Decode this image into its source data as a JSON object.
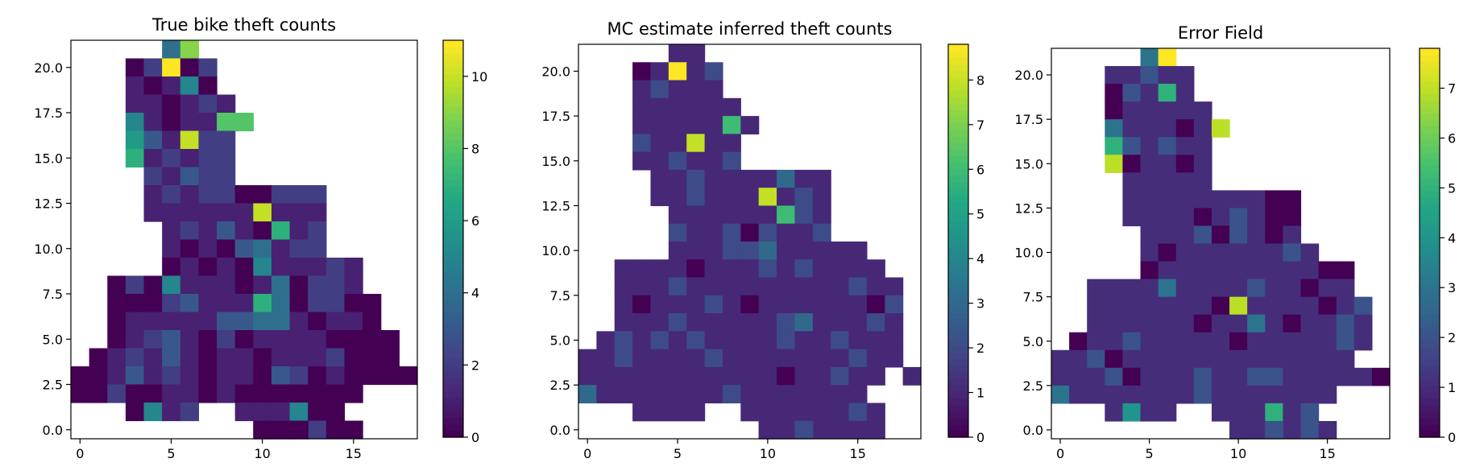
{
  "colormap": "viridis",
  "chart_data": [
    {
      "type": "heatmap",
      "title": "True bike theft counts",
      "xlim": [
        -0.5,
        18.5
      ],
      "ylim": [
        -0.5,
        21.5
      ],
      "xticks": [
        "0",
        "5",
        "10",
        "15"
      ],
      "yticks": [
        "0.0",
        "2.5",
        "5.0",
        "7.5",
        "10.0",
        "12.5",
        "15.0",
        "17.5",
        "20.0"
      ],
      "colorbar": {
        "min": 0,
        "max": 11,
        "ticks": [
          "0",
          "2",
          "4",
          "6",
          "8",
          "10"
        ]
      },
      "cell_rows": [
        {
          "y": 21,
          "x0": 5,
          "values": [
            4,
            9
          ]
        },
        {
          "y": 20,
          "x0": 3,
          "values": [
            0,
            2,
            11,
            0,
            2
          ]
        },
        {
          "y": 19,
          "x0": 3,
          "values": [
            1,
            0,
            1,
            5,
            0
          ]
        },
        {
          "y": 18,
          "x0": 3,
          "values": [
            1,
            1,
            0,
            1,
            2,
            1
          ]
        },
        {
          "y": 17,
          "x0": 3,
          "values": [
            5,
            1,
            0,
            1,
            1,
            8,
            8
          ]
        },
        {
          "y": 16,
          "x0": 3,
          "values": [
            6,
            3,
            1,
            10,
            2,
            2
          ]
        },
        {
          "y": 15,
          "x0": 3,
          "values": [
            7,
            1,
            2,
            1,
            2,
            2
          ]
        },
        {
          "y": 14,
          "x0": 4,
          "values": [
            2,
            1,
            3,
            2,
            2
          ]
        },
        {
          "y": 13,
          "x0": 4,
          "values": [
            1,
            2,
            1,
            2,
            2,
            0,
            0,
            2,
            2,
            2
          ]
        },
        {
          "y": 12,
          "x0": 4,
          "values": [
            1,
            1,
            1,
            1,
            1,
            1,
            10,
            1,
            1,
            1
          ]
        },
        {
          "y": 11,
          "x0": 5,
          "values": [
            1,
            2,
            1,
            3,
            1,
            0,
            7,
            1,
            2
          ]
        },
        {
          "y": 10,
          "x0": 5,
          "values": [
            1,
            0,
            1,
            0,
            3,
            4,
            1,
            2,
            2
          ]
        },
        {
          "y": 9,
          "x0": 5,
          "values": [
            0,
            1,
            0,
            1,
            0,
            5,
            1,
            1,
            1,
            2,
            1
          ]
        },
        {
          "y": 8,
          "x0": 2,
          "values": [
            0,
            2,
            0,
            5,
            1,
            1,
            1,
            0,
            1,
            4,
            0,
            2,
            2,
            1
          ]
        },
        {
          "y": 7,
          "x0": 2,
          "values": [
            0,
            0,
            0,
            2,
            3,
            1,
            1,
            1,
            7,
            4,
            0,
            2,
            2,
            0,
            0
          ]
        },
        {
          "y": 6,
          "x0": 2,
          "values": [
            0,
            1,
            1,
            1,
            1,
            1,
            3,
            3,
            4,
            4,
            1,
            0,
            1,
            1,
            0
          ]
        },
        {
          "y": 5,
          "x0": 2,
          "values": [
            0,
            1,
            2,
            3,
            1,
            0,
            2,
            0,
            1,
            1,
            1,
            1,
            0,
            0,
            0,
            0
          ]
        },
        {
          "y": 4,
          "x0": 1,
          "values": [
            0,
            1,
            2,
            1,
            3,
            1,
            0,
            1,
            1,
            0,
            1,
            1,
            1,
            2,
            0,
            0,
            0
          ]
        },
        {
          "y": 3,
          "x0": 0,
          "values": [
            0,
            0,
            1,
            3,
            1,
            2,
            1,
            0,
            1,
            1,
            0,
            3,
            2,
            0,
            1,
            0,
            0,
            0
          ]
        },
        {
          "y": 3,
          "x0": 18,
          "values": [
            0
          ]
        },
        {
          "y": 2,
          "x0": 0,
          "values": [
            0,
            0,
            2,
            0,
            0,
            1,
            1,
            0,
            1,
            0,
            0,
            0,
            0,
            0,
            0,
            0
          ]
        },
        {
          "y": 1,
          "x0": 3,
          "values": [
            0,
            5,
            1,
            2
          ]
        },
        {
          "y": 1,
          "x0": 9,
          "values": [
            1,
            1,
            1,
            5,
            0,
            0
          ]
        },
        {
          "y": 0,
          "x0": 10,
          "values": [
            0,
            1,
            1,
            2,
            0,
            0
          ]
        },
        {
          "y": 0,
          "x0": 10,
          "values": [
            0,
            0,
            0
          ]
        }
      ]
    },
    {
      "type": "heatmap",
      "title": "MC estimate inferred theft counts",
      "xlim": [
        -0.5,
        18.5
      ],
      "ylim": [
        -0.5,
        21.5
      ],
      "xticks": [
        "0",
        "5",
        "10",
        "15"
      ],
      "yticks": [
        "0.0",
        "2.5",
        "5.0",
        "7.5",
        "10.0",
        "12.5",
        "15.0",
        "17.5",
        "20.0"
      ],
      "colorbar": {
        "min": 0,
        "max": 8.8,
        "ticks": [
          "0",
          "1",
          "2",
          "3",
          "4",
          "5",
          "6",
          "7",
          "8"
        ]
      },
      "cell_rows": [
        {
          "y": 21,
          "x0": 5,
          "values": [
            1,
            1
          ]
        },
        {
          "y": 20,
          "x0": 3,
          "values": [
            0,
            1,
            8.8,
            1,
            2
          ]
        },
        {
          "y": 19,
          "x0": 3,
          "values": [
            1,
            2,
            1,
            1,
            1
          ]
        },
        {
          "y": 18,
          "x0": 3,
          "values": [
            1,
            1,
            1,
            1,
            1,
            1
          ]
        },
        {
          "y": 17,
          "x0": 3,
          "values": [
            1,
            1,
            1,
            1,
            1,
            6,
            1
          ]
        },
        {
          "y": 16,
          "x0": 3,
          "values": [
            2,
            1,
            1,
            8,
            1,
            1
          ]
        },
        {
          "y": 15,
          "x0": 3,
          "values": [
            1,
            1,
            2,
            1,
            1,
            2
          ]
        },
        {
          "y": 14,
          "x0": 4,
          "values": [
            1,
            1,
            2,
            1,
            1,
            1,
            1,
            3,
            1,
            1
          ]
        },
        {
          "y": 13,
          "x0": 4,
          "values": [
            1,
            1,
            2,
            1,
            1,
            1,
            8,
            1,
            2,
            1
          ]
        },
        {
          "y": 12,
          "x0": 5,
          "values": [
            1,
            1,
            1,
            1,
            1,
            1,
            6,
            2,
            1
          ]
        },
        {
          "y": 11,
          "x0": 5,
          "values": [
            2,
            1,
            1,
            2,
            0,
            2,
            1,
            1,
            2
          ]
        },
        {
          "y": 10,
          "x0": 5,
          "values": [
            1,
            1,
            1,
            2,
            2,
            3,
            1,
            1,
            1,
            1,
            1
          ]
        },
        {
          "y": 9,
          "x0": 2,
          "values": [
            1,
            1,
            1,
            1,
            0,
            1,
            1,
            1,
            2,
            1,
            2,
            1,
            1,
            1,
            1
          ]
        },
        {
          "y": 8,
          "x0": 2,
          "values": [
            1,
            1,
            1,
            2,
            1,
            1,
            1,
            1,
            1,
            1,
            1,
            1,
            1,
            2,
            1,
            1
          ]
        },
        {
          "y": 7,
          "x0": 2,
          "values": [
            1,
            0,
            1,
            1,
            1,
            2,
            1,
            0,
            1,
            1,
            1,
            1,
            1,
            1,
            0,
            2
          ]
        },
        {
          "y": 6,
          "x0": 2,
          "values": [
            1,
            1,
            1,
            2,
            1,
            1,
            1,
            1,
            1,
            2,
            3,
            1,
            1,
            1,
            2,
            1
          ]
        },
        {
          "y": 5,
          "x0": 1,
          "values": [
            1,
            2,
            1,
            2,
            1,
            2,
            1,
            1,
            1,
            1,
            2,
            1,
            1,
            2,
            1,
            1,
            1
          ]
        },
        {
          "y": 4,
          "x0": 0,
          "values": [
            1,
            1,
            2,
            1,
            1,
            1,
            1,
            2,
            1,
            1,
            1,
            1,
            1,
            1,
            1,
            2,
            1,
            1
          ]
        },
        {
          "y": 3,
          "x0": 0,
          "values": [
            1,
            1,
            1,
            1,
            1,
            1,
            1,
            1,
            1,
            1,
            1,
            0,
            1,
            1,
            2,
            1,
            1
          ]
        },
        {
          "y": 3,
          "x0": 18,
          "values": [
            1
          ]
        },
        {
          "y": 2,
          "x0": 0,
          "values": [
            3,
            1,
            1,
            1,
            1,
            1,
            1,
            1,
            2,
            1,
            1,
            1,
            1,
            1,
            1,
            1
          ]
        },
        {
          "y": 1,
          "x0": 3,
          "values": [
            1,
            1,
            1,
            1
          ]
        },
        {
          "y": 1,
          "x0": 9,
          "values": [
            1,
            1,
            1,
            1,
            1,
            1,
            2,
            1
          ]
        },
        {
          "y": 0,
          "x0": 10,
          "values": [
            1,
            1,
            1,
            1,
            1,
            1,
            1
          ]
        },
        {
          "y": 0,
          "x0": 10,
          "values": [
            1,
            1,
            2
          ]
        }
      ]
    },
    {
      "type": "heatmap",
      "title": "Error Field",
      "xlim": [
        -0.5,
        18.5
      ],
      "ylim": [
        -0.5,
        21.5
      ],
      "xticks": [
        "0",
        "5",
        "10",
        "15"
      ],
      "yticks": [
        "0.0",
        "2.5",
        "5.0",
        "7.5",
        "10.0",
        "12.5",
        "15.0",
        "17.5",
        "20.0"
      ],
      "colorbar": {
        "min": 0,
        "max": 7.8,
        "ticks": [
          "0",
          "1",
          "2",
          "3",
          "4",
          "5",
          "6",
          "7"
        ]
      },
      "cell_rows": [
        {
          "y": 21,
          "x0": 5,
          "values": [
            3,
            7.8
          ]
        },
        {
          "y": 20,
          "x0": 3,
          "values": [
            1,
            1,
            2,
            1,
            1
          ]
        },
        {
          "y": 19,
          "x0": 3,
          "values": [
            0,
            2,
            1,
            5,
            1
          ]
        },
        {
          "y": 18,
          "x0": 3,
          "values": [
            0,
            1,
            1,
            1,
            1,
            1
          ]
        },
        {
          "y": 17,
          "x0": 3,
          "values": [
            3,
            1,
            1,
            1,
            0,
            1,
            7
          ]
        },
        {
          "y": 16,
          "x0": 3,
          "values": [
            5,
            2,
            1,
            2,
            1,
            1
          ]
        },
        {
          "y": 15,
          "x0": 3,
          "values": [
            7,
            0,
            1,
            1,
            0,
            1
          ]
        },
        {
          "y": 14,
          "x0": 4,
          "values": [
            1,
            1,
            1,
            1,
            1
          ]
        },
        {
          "y": 13,
          "x0": 4,
          "values": [
            1,
            1,
            1,
            1,
            1,
            1,
            1,
            1,
            0,
            0
          ]
        },
        {
          "y": 12,
          "x0": 4,
          "values": [
            1,
            1,
            1,
            1,
            0,
            1,
            2,
            1,
            0,
            0
          ]
        },
        {
          "y": 11,
          "x0": 5,
          "values": [
            1,
            1,
            1,
            2,
            0,
            2,
            1,
            0,
            1
          ]
        },
        {
          "y": 10,
          "x0": 5,
          "values": [
            1,
            0,
            1,
            1,
            1,
            1,
            1,
            1,
            2,
            1
          ]
        },
        {
          "y": 9,
          "x0": 5,
          "values": [
            0,
            1,
            1,
            1,
            1,
            1,
            1,
            1,
            1,
            1,
            0,
            0
          ]
        },
        {
          "y": 8,
          "x0": 2,
          "values": [
            1,
            1,
            1,
            1,
            3,
            1,
            1,
            1,
            1,
            2,
            1,
            1,
            0,
            1,
            1
          ]
        },
        {
          "y": 7,
          "x0": 2,
          "values": [
            1,
            1,
            1,
            1,
            1,
            1,
            1,
            0,
            7,
            1,
            1,
            1,
            1,
            0,
            1,
            2
          ]
        },
        {
          "y": 6,
          "x0": 2,
          "values": [
            1,
            1,
            1,
            1,
            1,
            1,
            0,
            1,
            1,
            3,
            1,
            0,
            1,
            1,
            2,
            1
          ]
        },
        {
          "y": 5,
          "x0": 1,
          "values": [
            0,
            1,
            1,
            2,
            1,
            1,
            1,
            1,
            1,
            0,
            1,
            1,
            1,
            1,
            1,
            2,
            1
          ]
        },
        {
          "y": 4,
          "x0": 0,
          "values": [
            1,
            1,
            2,
            0,
            1,
            1,
            1,
            1,
            1,
            1,
            1,
            1,
            1,
            1,
            1,
            1,
            1
          ]
        },
        {
          "y": 3,
          "x0": 0,
          "values": [
            1,
            1,
            1,
            2,
            0,
            1,
            1,
            1,
            2,
            1,
            1,
            2,
            2,
            1,
            1,
            1,
            1,
            1
          ]
        },
        {
          "y": 3,
          "x0": 18,
          "values": [
            0
          ]
        },
        {
          "y": 2,
          "x0": 0,
          "values": [
            3,
            1,
            1,
            1,
            1,
            1,
            1,
            1,
            2,
            1,
            1,
            1,
            1,
            1,
            1,
            1
          ]
        },
        {
          "y": 1,
          "x0": 3,
          "values": [
            1,
            4,
            1,
            1
          ]
        },
        {
          "y": 1,
          "x0": 9,
          "values": [
            1,
            1,
            1,
            5,
            1,
            2
          ]
        },
        {
          "y": 0,
          "x0": 10,
          "values": [
            1,
            1,
            1,
            1,
            2,
            1
          ]
        },
        {
          "y": 0,
          "x0": 10,
          "values": [
            1,
            1,
            2
          ]
        }
      ]
    }
  ]
}
